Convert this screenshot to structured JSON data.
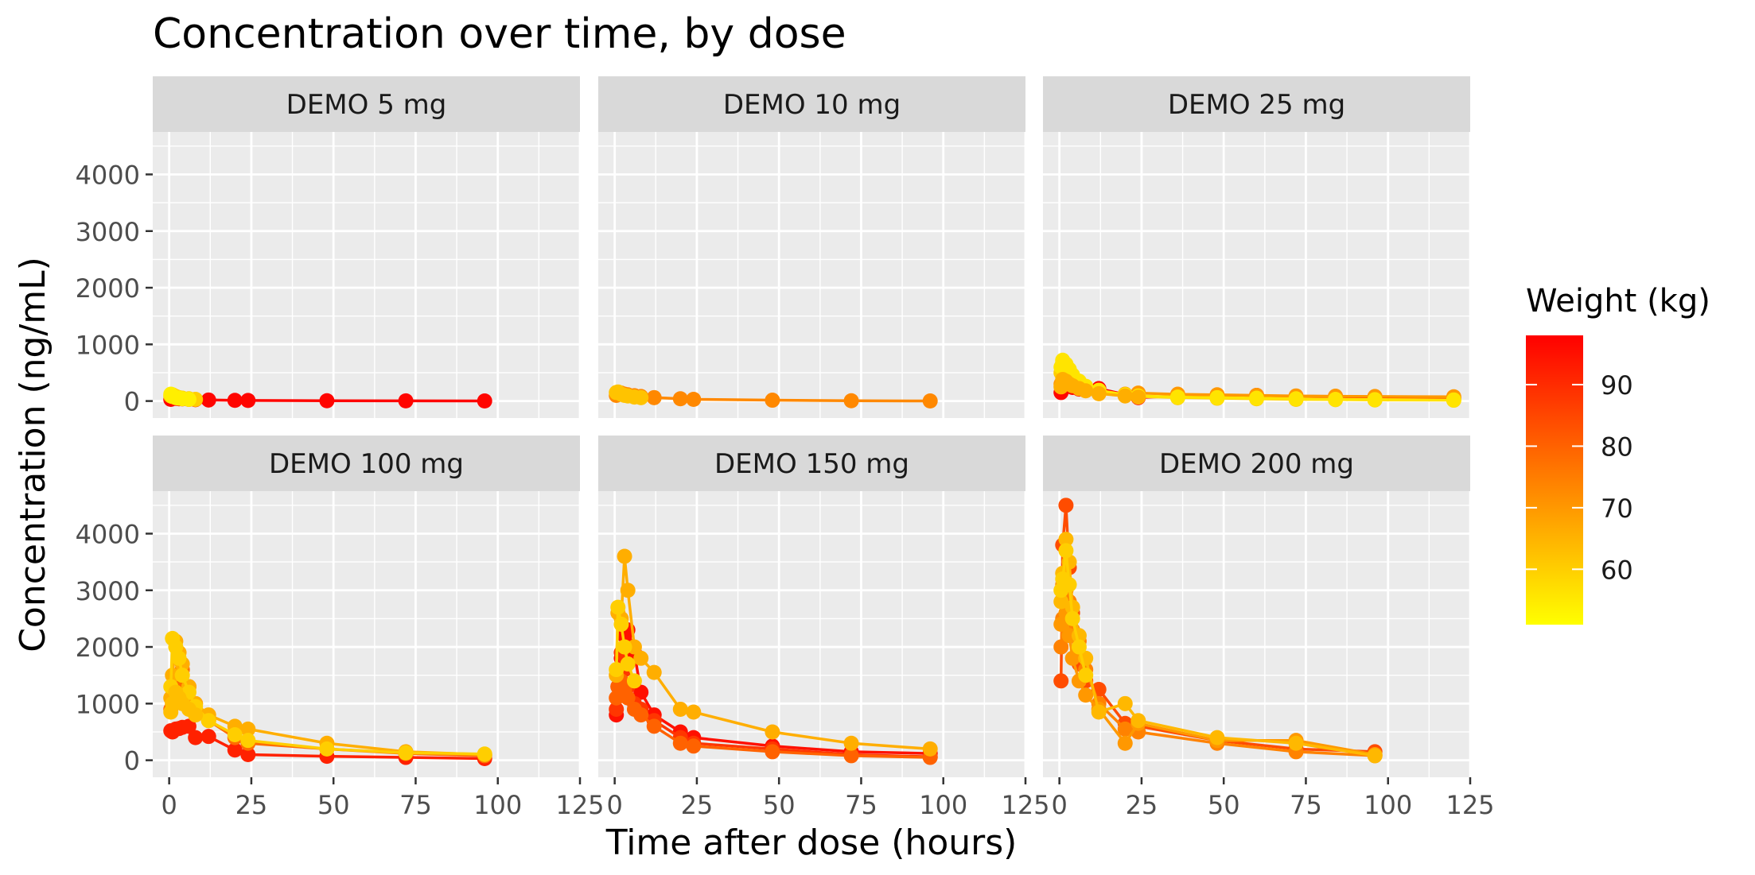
{
  "chart_data": {
    "type": "line",
    "title": "Concentration over time, by dose",
    "xlabel": "Time after dose (hours)",
    "ylabel": "Concentration (ng/mL)",
    "xlim": [
      -5,
      125
    ],
    "ylim": [
      -300,
      4750
    ],
    "x_ticks": [
      0,
      25,
      50,
      75,
      100,
      125
    ],
    "y_ticks": [
      0,
      1000,
      2000,
      3000,
      4000
    ],
    "grid": true,
    "legend": {
      "title": "Weight (kg)",
      "type": "colorbar",
      "range": [
        51,
        98
      ],
      "ticks": [
        60,
        70,
        80,
        90
      ],
      "low_color": "#FFFF00",
      "high_color": "#FF0000"
    },
    "panels": [
      {
        "label": "DEMO 5 mg",
        "series": [
          {
            "weight": 97,
            "x": [
              0.5,
              1,
              2,
              3,
              4,
              6,
              8,
              12,
              20,
              24,
              48,
              72,
              96
            ],
            "y": [
              30,
              45,
              48,
              40,
              38,
              30,
              25,
              18,
              12,
              10,
              5,
              3,
              2
            ]
          },
          {
            "weight": 60,
            "x": [
              0.5,
              1,
              2,
              3,
              4,
              6,
              8
            ],
            "y": [
              90,
              110,
              80,
              60,
              50,
              40,
              30
            ]
          },
          {
            "weight": 54,
            "x": [
              0.5,
              1,
              2,
              3,
              4,
              6
            ],
            "y": [
              120,
              80,
              60,
              50,
              40,
              30
            ]
          }
        ]
      },
      {
        "label": "DEMO 10 mg",
        "series": [
          {
            "weight": 73,
            "x": [
              0.5,
              1,
              2,
              3,
              4,
              6,
              8,
              12,
              20,
              24,
              48,
              72,
              96
            ],
            "y": [
              100,
              130,
              140,
              120,
              110,
              95,
              80,
              60,
              40,
              30,
              15,
              5,
              2
            ]
          },
          {
            "weight": 62,
            "x": [
              0.5,
              1,
              2,
              3,
              4,
              6,
              8
            ],
            "y": [
              150,
              160,
              120,
              100,
              90,
              70,
              60
            ]
          }
        ]
      },
      {
        "label": "DEMO 25 mg",
        "series": [
          {
            "weight": 97,
            "x": [
              0.5,
              1,
              2,
              3,
              4,
              6,
              8,
              12,
              24,
              36,
              48,
              60,
              72,
              84,
              96,
              120
            ],
            "y": [
              150,
              250,
              280,
              260,
              240,
              210,
              200,
              220,
              60,
              90,
              80,
              100,
              70,
              80,
              60,
              50
            ]
          },
          {
            "weight": 70,
            "x": [
              0.5,
              1,
              2,
              3,
              4,
              6,
              8,
              12,
              20,
              24,
              36,
              48,
              60,
              72,
              84,
              96,
              120
            ],
            "y": [
              300,
              450,
              400,
              330,
              300,
              260,
              200,
              150,
              120,
              140,
              120,
              110,
              100,
              90,
              85,
              80,
              75
            ]
          },
          {
            "weight": 60,
            "x": [
              0.5,
              1,
              2,
              3,
              4,
              6,
              8,
              12,
              20,
              24,
              36,
              48,
              60,
              72,
              84,
              96,
              120
            ],
            "y": [
              500,
              680,
              620,
              500,
              420,
              320,
              250,
              180,
              100,
              80,
              60,
              50,
              40,
              30,
              25,
              20,
              15
            ]
          },
          {
            "weight": 56,
            "x": [
              0.5,
              1,
              2,
              3,
              4,
              6,
              8,
              12,
              20,
              24,
              36,
              48,
              60,
              72,
              84,
              96,
              120
            ],
            "y": [
              600,
              720,
              650,
              560,
              460,
              350,
              260,
              190,
              110,
              90,
              70,
              60,
              50,
              40,
              30,
              25,
              20
            ]
          },
          {
            "weight": 66,
            "x": [
              0.5,
              1,
              2,
              3,
              4,
              6,
              8,
              12,
              20,
              24
            ],
            "y": [
              250,
              380,
              350,
              300,
              270,
              220,
              180,
              130,
              90,
              70
            ]
          }
        ]
      },
      {
        "label": "DEMO 100 mg",
        "series": [
          {
            "weight": 92,
            "x": [
              0.5,
              1,
              2,
              3,
              4,
              6,
              8,
              12,
              20,
              24,
              48,
              72,
              96
            ],
            "y": [
              520,
              500,
              550,
              560,
              580,
              600,
              400,
              420,
              180,
              100,
              70,
              50,
              30
            ]
          },
          {
            "weight": 78,
            "x": [
              0.5,
              1,
              2,
              3,
              4,
              6,
              8,
              12,
              20,
              24,
              48,
              72,
              96
            ],
            "y": [
              900,
              1000,
              1200,
              1400,
              1600,
              1300,
              1000,
              700,
              400,
              300,
              200,
              120,
              80
            ]
          },
          {
            "weight": 66,
            "x": [
              0.5,
              1,
              2,
              3,
              4,
              6,
              8,
              12,
              20,
              24,
              48,
              72,
              96
            ],
            "y": [
              1100,
              1500,
              2100,
              1900,
              1700,
              1300,
              1000,
              800,
              600,
              550,
              300,
              150,
              100
            ]
          },
          {
            "weight": 60,
            "x": [
              0.5,
              1,
              2,
              3,
              4,
              6,
              8,
              12,
              20,
              24,
              48,
              72,
              96
            ],
            "y": [
              1300,
              2150,
              2000,
              1800,
              1500,
              1200,
              950,
              700,
              450,
              350,
              200,
              130,
              110
            ]
          },
          {
            "weight": 63,
            "x": [
              0.5,
              1,
              2,
              3,
              4,
              6,
              8
            ],
            "y": [
              850,
              1000,
              1200,
              1100,
              1000,
              900,
              800
            ]
          }
        ]
      },
      {
        "label": "DEMO 150 mg",
        "series": [
          {
            "weight": 95,
            "x": [
              0.5,
              1,
              2,
              3,
              4,
              6,
              8,
              12,
              20,
              24,
              48,
              72,
              96
            ],
            "y": [
              800,
              1300,
              1800,
              2200,
              2300,
              1900,
              1200,
              800,
              500,
              400,
              250,
              150,
              120
            ]
          },
          {
            "weight": 88,
            "x": [
              0.5,
              1,
              2,
              3,
              4,
              6,
              8,
              12,
              20,
              24,
              48,
              72,
              96
            ],
            "y": [
              900,
              1500,
              1900,
              1600,
              1300,
              1000,
              900,
              700,
              400,
              300,
              200,
              100,
              60
            ]
          },
          {
            "weight": 80,
            "x": [
              0.5,
              1,
              2,
              3,
              4,
              6,
              8,
              12,
              20,
              24,
              48,
              72,
              96
            ],
            "y": [
              1100,
              1300,
              1400,
              1250,
              1100,
              900,
              800,
              600,
              300,
              250,
              150,
              80,
              50
            ]
          },
          {
            "weight": 66,
            "x": [
              0.5,
              1,
              2,
              3,
              4,
              6,
              8,
              12,
              20,
              24,
              48,
              72,
              96
            ],
            "y": [
              1500,
              2600,
              2500,
              3600,
              3000,
              2000,
              1800,
              1550,
              900,
              850,
              500,
              300,
              200
            ]
          },
          {
            "weight": 60,
            "x": [
              0.5,
              1,
              2,
              3,
              4,
              6
            ],
            "y": [
              1600,
              2700,
              2400,
              2000,
              1700,
              1400
            ]
          }
        ]
      },
      {
        "label": "DEMO 200 mg",
        "series": [
          {
            "weight": 84,
            "x": [
              0.5,
              1,
              2,
              3,
              4,
              6,
              8,
              12,
              20,
              24,
              48,
              72,
              96
            ],
            "y": [
              1400,
              3800,
              4500,
              3400,
              2600,
              1700,
              1400,
              1250,
              650,
              600,
              350,
              200,
              150
            ]
          },
          {
            "weight": 74,
            "x": [
              0.5,
              1,
              2,
              3,
              4,
              6,
              8,
              12,
              20,
              24,
              48,
              72,
              96
            ],
            "y": [
              2000,
              2500,
              3000,
              2800,
              2300,
              2100,
              1600,
              1000,
              550,
              500,
              300,
              150,
              80
            ]
          },
          {
            "weight": 70,
            "x": [
              0.5,
              1,
              2,
              3,
              4,
              6,
              8,
              12,
              20,
              24,
              48,
              72,
              96
            ],
            "y": [
              2400,
              3100,
              2600,
              2200,
              1800,
              1400,
              1150,
              900,
              300,
              650,
              350,
              350,
              100
            ]
          },
          {
            "weight": 64,
            "x": [
              0.5,
              1,
              2,
              3,
              4,
              6,
              8,
              12,
              20,
              24,
              48,
              72,
              96
            ],
            "y": [
              2800,
              3300,
              3900,
              3500,
              2700,
              2200,
              1800,
              850,
              1000,
              700,
              400,
              300,
              80
            ]
          },
          {
            "weight": 60,
            "x": [
              0.5,
              1,
              2,
              3,
              4,
              6,
              8
            ],
            "y": [
              3000,
              3200,
              3700,
              3100,
              2500,
              2000,
              1500
            ]
          }
        ]
      }
    ]
  }
}
